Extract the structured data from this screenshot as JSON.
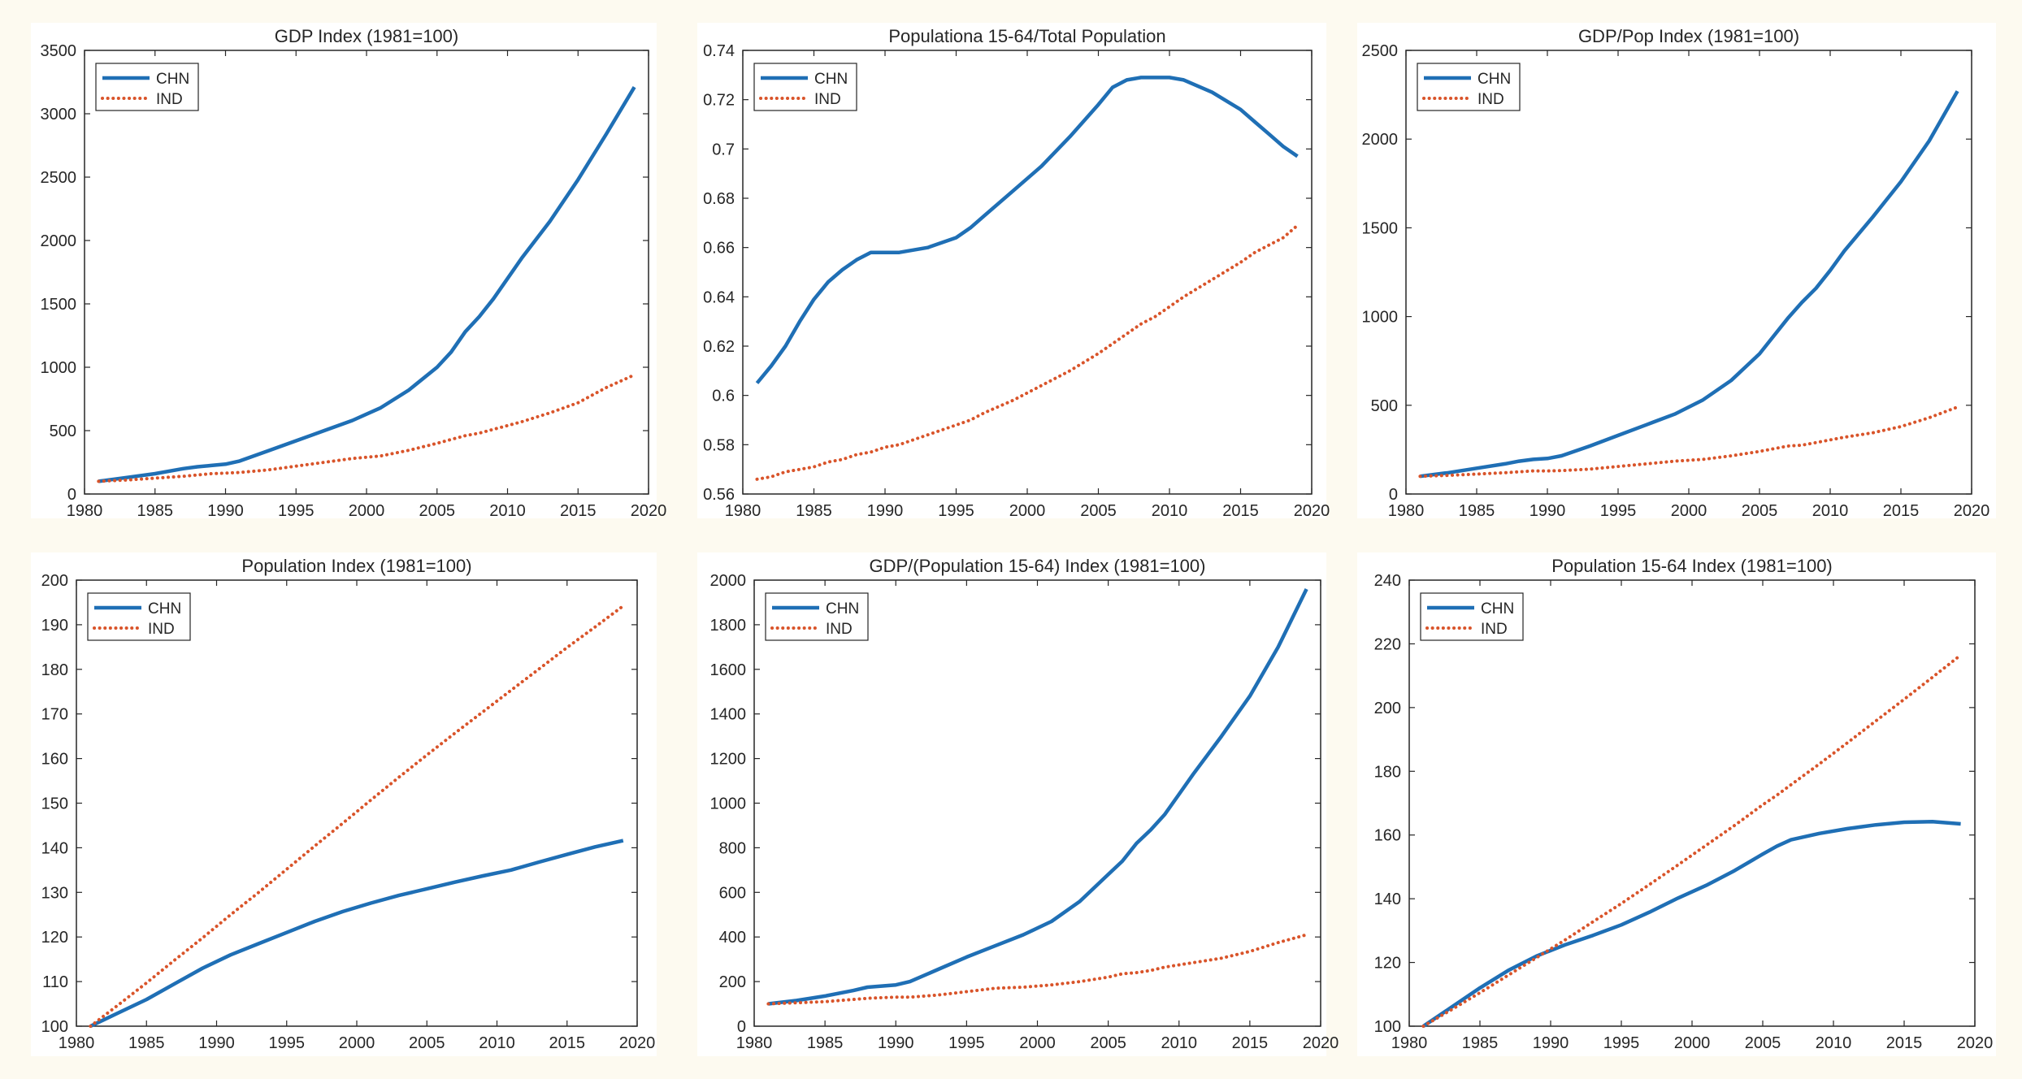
{
  "colors": {
    "CHN": "#1f6fb5",
    "IND": "#d9542a",
    "background": "#fdfaf0",
    "panel": "#ffffff",
    "axis": "#262626"
  },
  "chart_data": [
    {
      "type": "line",
      "title": "GDP Index  (1981=100)",
      "xlim": [
        1980,
        2020
      ],
      "ylim": [
        0,
        3500
      ],
      "xticks": [
        "1980",
        "1985",
        "1990",
        "1995",
        "2000",
        "2005",
        "2010",
        "2015",
        "2020"
      ],
      "yticks": [
        "0",
        "500",
        "1000",
        "1500",
        "2000",
        "2500",
        "3000",
        "3500"
      ],
      "xtick_values": [
        1980,
        1985,
        1990,
        1995,
        2000,
        2005,
        2010,
        2015,
        2020
      ],
      "ytick_values": [
        0,
        500,
        1000,
        1500,
        2000,
        2500,
        3000,
        3500
      ],
      "legend": "top-left",
      "x": [
        1981,
        1983,
        1985,
        1987,
        1988,
        1989,
        1990,
        1991,
        1993,
        1995,
        1997,
        1999,
        2001,
        2003,
        2005,
        2006,
        2007,
        2008,
        2009,
        2010,
        2011,
        2013,
        2015,
        2017,
        2019
      ],
      "series": [
        {
          "name": "CHN",
          "style": "solid",
          "values": [
            100,
            130,
            160,
            200,
            215,
            225,
            235,
            260,
            340,
            420,
            500,
            580,
            680,
            820,
            1000,
            1120,
            1280,
            1400,
            1540,
            1700,
            1860,
            2150,
            2480,
            2840,
            3210
          ]
        },
        {
          "name": "IND",
          "style": "dotted",
          "values": [
            100,
            110,
            125,
            140,
            150,
            160,
            165,
            170,
            190,
            220,
            250,
            280,
            300,
            345,
            400,
            430,
            460,
            480,
            510,
            540,
            570,
            640,
            720,
            840,
            940
          ]
        }
      ]
    },
    {
      "type": "line",
      "title": "Populationa 15-64/Total Population",
      "xlim": [
        1980,
        2020
      ],
      "ylim": [
        0.56,
        0.74
      ],
      "xticks": [
        "1980",
        "1985",
        "1990",
        "1995",
        "2000",
        "2005",
        "2010",
        "2015",
        "2020"
      ],
      "yticks": [
        "0.56",
        "0.58",
        "0.6",
        "0.62",
        "0.64",
        "0.66",
        "0.68",
        "0.7",
        "0.72",
        "0.74"
      ],
      "xtick_values": [
        1980,
        1985,
        1990,
        1995,
        2000,
        2005,
        2010,
        2015,
        2020
      ],
      "ytick_values": [
        0.56,
        0.58,
        0.6,
        0.62,
        0.64,
        0.66,
        0.68,
        0.7,
        0.72,
        0.74
      ],
      "legend": "top-left",
      "x": [
        1981,
        1982,
        1983,
        1984,
        1985,
        1986,
        1987,
        1988,
        1989,
        1990,
        1991,
        1993,
        1995,
        1996,
        1997,
        1999,
        2001,
        2003,
        2005,
        2006,
        2007,
        2008,
        2009,
        2010,
        2011,
        2013,
        2015,
        2016,
        2017,
        2018,
        2019
      ],
      "series": [
        {
          "name": "CHN",
          "style": "solid",
          "values": [
            0.605,
            0.612,
            0.62,
            0.63,
            0.639,
            0.646,
            0.651,
            0.655,
            0.658,
            0.658,
            0.658,
            0.66,
            0.664,
            0.668,
            0.673,
            0.683,
            0.693,
            0.705,
            0.718,
            0.725,
            0.728,
            0.729,
            0.729,
            0.729,
            0.728,
            0.723,
            0.716,
            0.711,
            0.706,
            0.701,
            0.697
          ]
        },
        {
          "name": "IND",
          "style": "dotted",
          "values": [
            0.566,
            0.567,
            0.569,
            0.57,
            0.571,
            0.573,
            0.574,
            0.576,
            0.577,
            0.579,
            0.58,
            0.584,
            0.588,
            0.59,
            0.593,
            0.598,
            0.604,
            0.61,
            0.617,
            0.621,
            0.625,
            0.629,
            0.632,
            0.636,
            0.64,
            0.647,
            0.654,
            0.658,
            0.661,
            0.664,
            0.669
          ]
        }
      ]
    },
    {
      "type": "line",
      "title": "GDP/Pop Index  (1981=100)",
      "xlim": [
        1980,
        2020
      ],
      "ylim": [
        0,
        2500
      ],
      "xticks": [
        "1980",
        "1985",
        "1990",
        "1995",
        "2000",
        "2005",
        "2010",
        "2015",
        "2020"
      ],
      "yticks": [
        "0",
        "500",
        "1000",
        "1500",
        "2000",
        "2500"
      ],
      "xtick_values": [
        1980,
        1985,
        1990,
        1995,
        2000,
        2005,
        2010,
        2015,
        2020
      ],
      "ytick_values": [
        0,
        500,
        1000,
        1500,
        2000,
        2500
      ],
      "legend": "top-left",
      "x": [
        1981,
        1983,
        1985,
        1987,
        1988,
        1989,
        1990,
        1991,
        1993,
        1995,
        1997,
        1999,
        2001,
        2003,
        2005,
        2006,
        2007,
        2008,
        2009,
        2010,
        2011,
        2013,
        2015,
        2017,
        2019
      ],
      "series": [
        {
          "name": "CHN",
          "style": "solid",
          "values": [
            100,
            120,
            145,
            170,
            185,
            195,
            200,
            215,
            270,
            330,
            390,
            450,
            530,
            640,
            790,
            890,
            990,
            1080,
            1160,
            1260,
            1370,
            1560,
            1760,
            1990,
            2270
          ]
        },
        {
          "name": "IND",
          "style": "dotted",
          "values": [
            100,
            105,
            112,
            120,
            125,
            130,
            130,
            132,
            140,
            155,
            170,
            185,
            195,
            215,
            240,
            255,
            270,
            275,
            290,
            305,
            320,
            345,
            380,
            430,
            490
          ]
        }
      ]
    },
    {
      "type": "line",
      "title": "Population Index  (1981=100)",
      "xlim": [
        1980,
        2020
      ],
      "ylim": [
        100,
        200
      ],
      "xticks": [
        "1980",
        "1985",
        "1990",
        "1995",
        "2000",
        "2005",
        "2010",
        "2015",
        "2020"
      ],
      "yticks": [
        "100",
        "110",
        "120",
        "130",
        "140",
        "150",
        "160",
        "170",
        "180",
        "190",
        "200"
      ],
      "xtick_values": [
        1980,
        1985,
        1990,
        1995,
        2000,
        2005,
        2010,
        2015,
        2020
      ],
      "ytick_values": [
        100,
        110,
        120,
        130,
        140,
        150,
        160,
        170,
        180,
        190,
        200
      ],
      "legend": "top-left",
      "x": [
        1981,
        1983,
        1985,
        1987,
        1989,
        1991,
        1993,
        1995,
        1997,
        1999,
        2001,
        2003,
        2005,
        2007,
        2009,
        2011,
        2013,
        2015,
        2017,
        2019
      ],
      "series": [
        {
          "name": "CHN",
          "style": "solid",
          "values": [
            100,
            103,
            106,
            109.5,
            113,
            116,
            118.5,
            121,
            123.5,
            125.7,
            127.6,
            129.3,
            130.8,
            132.3,
            133.7,
            135,
            136.8,
            138.5,
            140.2,
            141.6
          ]
        },
        {
          "name": "IND",
          "style": "dotted",
          "values": [
            100,
            104.8,
            109.7,
            114.8,
            119.8,
            125,
            130,
            135.2,
            140.4,
            145.5,
            150.7,
            155.8,
            160.8,
            165.7,
            170.5,
            175.3,
            180.1,
            184.9,
            189.5,
            194.2
          ]
        }
      ]
    },
    {
      "type": "line",
      "title": "GDP/(Population 15-64) Index  (1981=100)",
      "xlim": [
        1980,
        2020
      ],
      "ylim": [
        0,
        2000
      ],
      "xticks": [
        "1980",
        "1985",
        "1990",
        "1995",
        "2000",
        "2005",
        "2010",
        "2015",
        "2020"
      ],
      "yticks": [
        "0",
        "200",
        "400",
        "600",
        "800",
        "1000",
        "1200",
        "1400",
        "1600",
        "1800",
        "2000"
      ],
      "xtick_values": [
        1980,
        1985,
        1990,
        1995,
        2000,
        2005,
        2010,
        2015,
        2020
      ],
      "ytick_values": [
        0,
        200,
        400,
        600,
        800,
        1000,
        1200,
        1400,
        1600,
        1800,
        2000
      ],
      "legend": "top-left",
      "x": [
        1981,
        1983,
        1985,
        1987,
        1988,
        1989,
        1990,
        1991,
        1993,
        1995,
        1997,
        1999,
        2001,
        2003,
        2005,
        2006,
        2007,
        2008,
        2009,
        2010,
        2011,
        2013,
        2015,
        2017,
        2019
      ],
      "series": [
        {
          "name": "CHN",
          "style": "solid",
          "values": [
            100,
            115,
            135,
            160,
            175,
            180,
            185,
            200,
            255,
            310,
            360,
            410,
            470,
            560,
            680,
            740,
            820,
            880,
            950,
            1040,
            1130,
            1300,
            1480,
            1700,
            1960
          ]
        },
        {
          "name": "IND",
          "style": "dotted",
          "values": [
            100,
            105,
            110,
            120,
            125,
            128,
            130,
            130,
            140,
            155,
            170,
            175,
            185,
            200,
            220,
            235,
            240,
            250,
            265,
            275,
            285,
            305,
            335,
            375,
            410
          ]
        }
      ]
    },
    {
      "type": "line",
      "title": "Population 15-64 Index  (1981=100)",
      "xlim": [
        1980,
        2020
      ],
      "ylim": [
        100,
        240
      ],
      "xticks": [
        "1980",
        "1985",
        "1990",
        "1995",
        "2000",
        "2005",
        "2010",
        "2015",
        "2020"
      ],
      "yticks": [
        "100",
        "120",
        "140",
        "160",
        "180",
        "200",
        "220",
        "240"
      ],
      "xtick_values": [
        1980,
        1985,
        1990,
        1995,
        2000,
        2005,
        2010,
        2015,
        2020
      ],
      "ytick_values": [
        100,
        120,
        140,
        160,
        180,
        200,
        220,
        240
      ],
      "legend": "top-left",
      "x": [
        1981,
        1983,
        1985,
        1987,
        1989,
        1991,
        1993,
        1995,
        1997,
        1999,
        2001,
        2003,
        2005,
        2006,
        2007,
        2009,
        2011,
        2013,
        2015,
        2017,
        2019
      ],
      "series": [
        {
          "name": "CHN",
          "style": "solid",
          "values": [
            100,
            106,
            112,
            117.5,
            122,
            125.5,
            128.5,
            131.8,
            135.8,
            140.2,
            144.2,
            148.8,
            154,
            156.5,
            158.5,
            160.5,
            162,
            163.2,
            164,
            164.2,
            163.5
          ]
        },
        {
          "name": "IND",
          "style": "dotted",
          "values": [
            100,
            105.2,
            110.5,
            116,
            121.5,
            127,
            132.8,
            138.5,
            144.5,
            150.6,
            156.8,
            163,
            169.5,
            172.5,
            175.8,
            182.3,
            189,
            195.8,
            202.6,
            209.5,
            216.5
          ]
        }
      ]
    }
  ]
}
